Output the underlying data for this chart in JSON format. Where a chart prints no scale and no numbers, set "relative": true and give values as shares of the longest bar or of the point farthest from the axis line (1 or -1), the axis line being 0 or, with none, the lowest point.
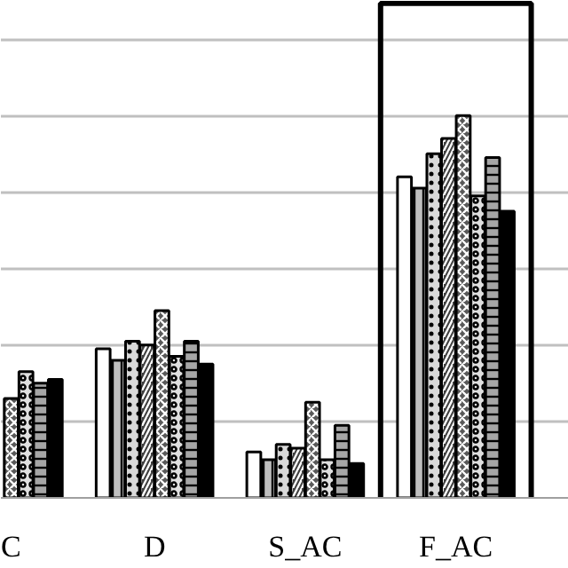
{
  "chart_data": {
    "type": "bar",
    "relative": true,
    "grid": "y",
    "categories": [
      "C",
      "D",
      "S_AC",
      "F_AC"
    ],
    "series": [
      {
        "color": "#ffffff",
        "values": [
          null,
          0.39,
          0.12,
          0.84
        ]
      },
      {
        "color": "#bfbfbf",
        "values": [
          null,
          0.36,
          0.1,
          0.81
        ]
      },
      {
        "color": "#d9d9d9",
        "values": [
          null,
          0.41,
          0.14,
          0.9
        ]
      },
      {
        "color": "#404040",
        "values": [
          null,
          0.4,
          0.13,
          0.94
        ]
      },
      {
        "color": "#595959",
        "values": [
          0.26,
          0.49,
          0.25,
          1.0
        ]
      },
      {
        "color": "#e0e0e0",
        "values": [
          0.33,
          0.37,
          0.1,
          0.79
        ]
      },
      {
        "color": "#a6a6a6",
        "values": [
          0.3,
          0.41,
          0.19,
          0.89
        ]
      },
      {
        "color": "#000000",
        "values": [
          0.31,
          0.35,
          0.09,
          0.75
        ]
      }
    ]
  }
}
